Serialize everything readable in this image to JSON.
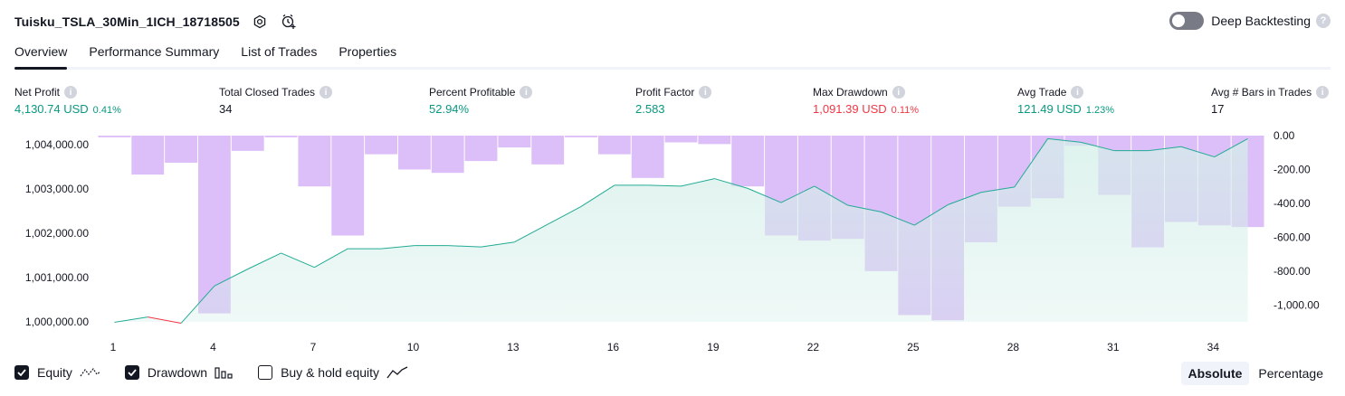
{
  "header": {
    "title": "Tuisku_TSLA_30Min_1ICH_18718505"
  },
  "deep_backtesting": {
    "label": "Deep Backtesting",
    "help": "?"
  },
  "tabs": [
    {
      "label": "Overview"
    },
    {
      "label": "Performance Summary"
    },
    {
      "label": "List of Trades"
    },
    {
      "label": "Properties"
    }
  ],
  "metrics": [
    {
      "label": "Net Profit",
      "value": "4,130.74 USD",
      "pct": "0.41%",
      "info": "i"
    },
    {
      "label": "Total Closed Trades",
      "value": "34",
      "info": "i"
    },
    {
      "label": "Percent Profitable",
      "value": "52.94%",
      "info": "i"
    },
    {
      "label": "Profit Factor",
      "value": "2.583",
      "info": "i"
    },
    {
      "label": "Max Drawdown",
      "value": "1,091.39 USD",
      "pct": "0.11%",
      "info": "i"
    },
    {
      "label": "Avg Trade",
      "value": "121.49 USD",
      "pct": "1.23%",
      "info": "i"
    },
    {
      "label": "Avg # Bars in Trades",
      "value": "17",
      "info": "i"
    }
  ],
  "legend": {
    "equity": "Equity",
    "drawdown": "Drawdown",
    "buy_hold": "Buy & hold equity"
  },
  "modes": {
    "absolute": "Absolute",
    "percentage": "Percentage"
  },
  "colors": {
    "equity_line": "#22ab94",
    "equity_fill": "#d4efe9",
    "drawdown_bar": "#d6b3f7",
    "negative": "#f23645",
    "positive": "#089981"
  },
  "chart_data": {
    "type": "line",
    "x": [
      1,
      2,
      3,
      4,
      5,
      6,
      7,
      8,
      9,
      10,
      11,
      12,
      13,
      14,
      15,
      16,
      17,
      18,
      19,
      20,
      21,
      22,
      23,
      24,
      25,
      26,
      27,
      28,
      29,
      30,
      31,
      32,
      33,
      34,
      35
    ],
    "x_ticks": [
      "1",
      "4",
      "7",
      "10",
      "13",
      "16",
      "19",
      "22",
      "25",
      "28",
      "31",
      "34"
    ],
    "equity": [
      999990,
      1000110,
      999970,
      1000810,
      1001190,
      1001550,
      1001230,
      1001650,
      1001650,
      1001720,
      1001720,
      1001690,
      1001800,
      1002200,
      1002600,
      1003080,
      1003080,
      1003060,
      1003230,
      1003010,
      1002690,
      1003060,
      1002630,
      1002480,
      1002180,
      1002640,
      1002920,
      1003040,
      1004130,
      1004050,
      1003860,
      1003860,
      1003950,
      1003720,
      1004130
    ],
    "drawdown": [
      -10,
      -230,
      -160,
      -1050,
      -90,
      -10,
      -300,
      -590,
      -110,
      -200,
      -220,
      -150,
      -70,
      -170,
      -10,
      -110,
      -250,
      -40,
      -50,
      -300,
      -590,
      -620,
      -610,
      -800,
      -1060,
      -1091,
      -630,
      -420,
      -370,
      -60,
      -350,
      -660,
      -510,
      -530,
      -540
    ],
    "y_left_ticks": [
      "1,004,000.00",
      "1,003,000.00",
      "1,002,000.00",
      "1,001,000.00",
      "1,000,000.00"
    ],
    "y_right_ticks": [
      "0.00",
      "-200.00",
      "-400.00",
      "-600.00",
      "-800.00",
      "-1,000.00"
    ],
    "ylim_left": [
      1000000,
      1004200
    ],
    "ylim_right": [
      -1100,
      0
    ]
  }
}
